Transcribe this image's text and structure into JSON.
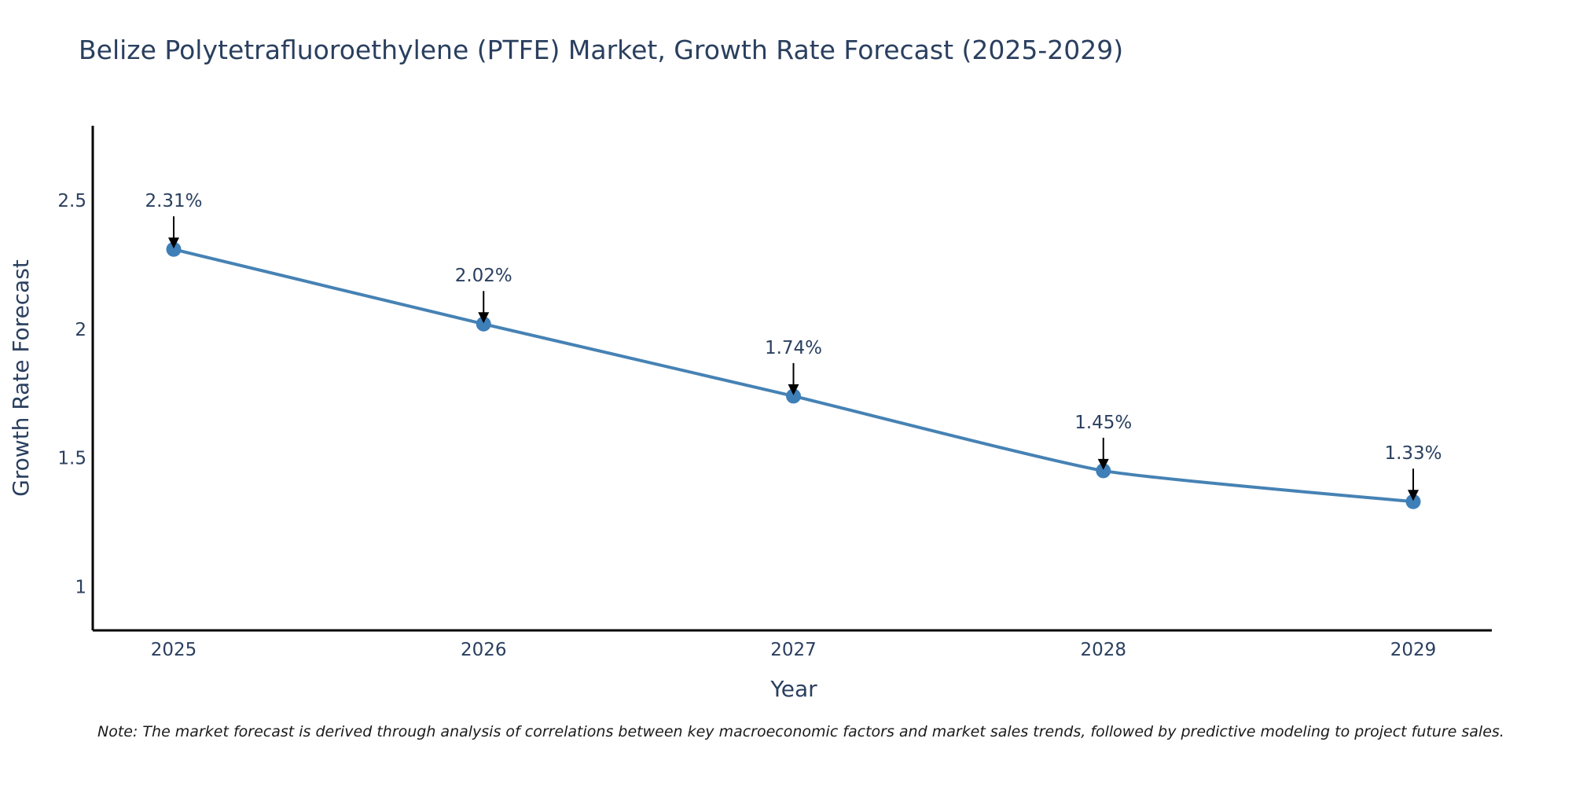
{
  "chart_data": {
    "type": "line",
    "title": "Belize Polytetrafluoroethylene (PTFE) Market, Growth Rate Forecast (2025-2029)",
    "xlabel": "Year",
    "ylabel": "Growth Rate Forecast",
    "categories": [
      "2025",
      "2026",
      "2027",
      "2028",
      "2029"
    ],
    "values": [
      2.31,
      2.02,
      1.74,
      1.45,
      1.33
    ],
    "data_labels": [
      "2.31%",
      "2.02%",
      "1.74%",
      "1.45%",
      "1.33%"
    ],
    "yticks": [
      1,
      1.5,
      2,
      2.5
    ],
    "ytick_labels": [
      "1",
      "1.5",
      "2",
      "2.5"
    ],
    "ylim": [
      0.83,
      2.79
    ],
    "grid": false,
    "line_color": "#4682b4",
    "marker_color": "#3f7fb8",
    "note": "Note: The market forecast is derived through analysis of correlations between key macroeconomic factors and market sales trends, followed by predictive modeling to project future sales."
  }
}
